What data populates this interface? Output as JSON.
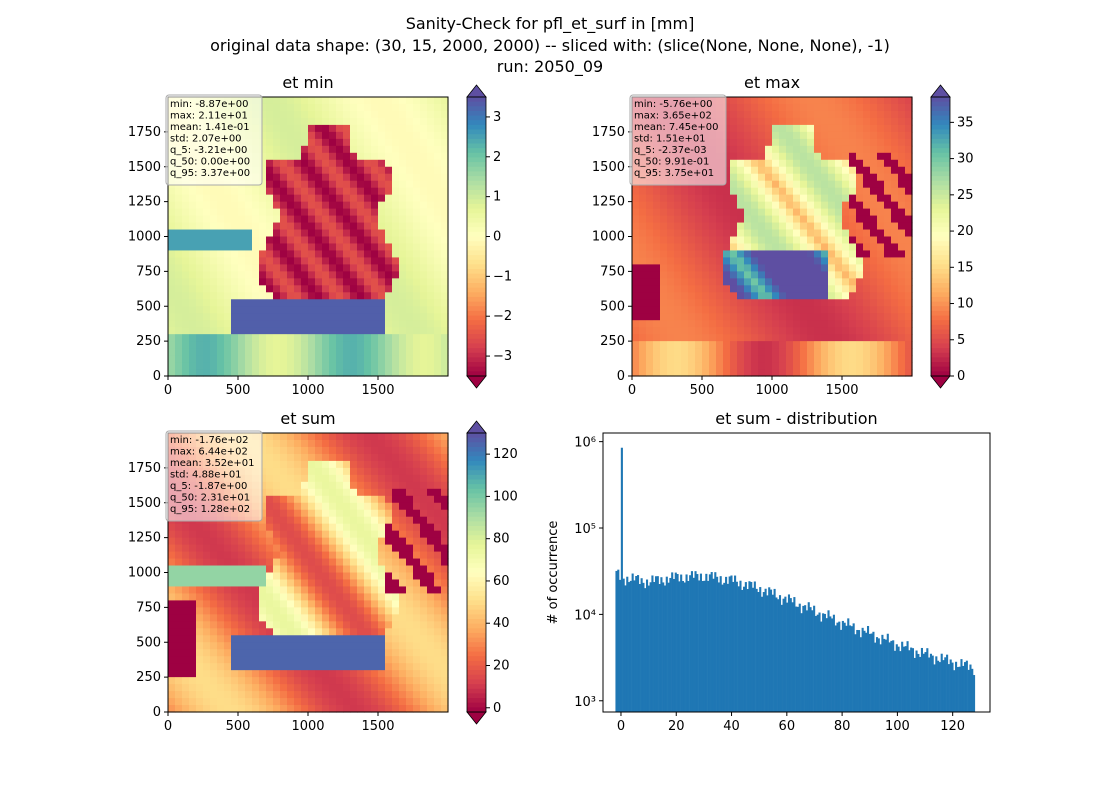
{
  "figure": {
    "suptitle_lines": [
      "Sanity-Check for pfl_et_surf in [mm]",
      "original data shape: (30, 15, 2000, 2000) -- sliced with: (slice(None, None, None), -1)",
      "run: 2050_09"
    ]
  },
  "chart_data": [
    {
      "type": "heatmap",
      "title": "et min",
      "xlabel": "",
      "ylabel": "",
      "xlim": [
        0,
        2000
      ],
      "ylim": [
        0,
        2000
      ],
      "xticks": [
        0,
        500,
        1000,
        1500
      ],
      "yticks": [
        0,
        250,
        500,
        750,
        1000,
        1250,
        1500,
        1750
      ],
      "colormap": "Spectral",
      "colorbar": {
        "range": [
          -3.5,
          3.5
        ],
        "ticks": [
          -3,
          -2,
          -1,
          0,
          1,
          2,
          3
        ],
        "extend": "both"
      },
      "stats": [
        "min: -8.87e+00",
        "max: 2.11e+01",
        "mean: 1.41e-01",
        "std: 2.07e+00",
        "q_5: -3.21e+00",
        "q_50: 0.00e+00",
        "q_95: 3.37e+00"
      ]
    },
    {
      "type": "heatmap",
      "title": "et max",
      "xlabel": "",
      "ylabel": "",
      "xlim": [
        0,
        2000
      ],
      "ylim": [
        0,
        2000
      ],
      "xticks": [
        0,
        500,
        1000,
        1500
      ],
      "yticks": [
        0,
        250,
        500,
        750,
        1000,
        1250,
        1500,
        1750
      ],
      "colormap": "Spectral",
      "colorbar": {
        "range": [
          0,
          38.5
        ],
        "ticks": [
          0,
          5,
          10,
          15,
          20,
          25,
          30,
          35
        ],
        "extend": "both"
      },
      "stats": [
        "min: -5.76e+00",
        "max: 3.65e+02",
        "mean: 7.45e+00",
        "std: 1.51e+01",
        "q_5: -2.37e-03",
        "q_50: 9.91e-01",
        "q_95: 3.75e+01"
      ]
    },
    {
      "type": "heatmap",
      "title": "et sum",
      "xlabel": "",
      "ylabel": "",
      "xlim": [
        0,
        2000
      ],
      "ylim": [
        0,
        2000
      ],
      "xticks": [
        0,
        500,
        1000,
        1500
      ],
      "yticks": [
        0,
        250,
        500,
        750,
        1000,
        1250,
        1500,
        1750
      ],
      "colormap": "Spectral",
      "colorbar": {
        "range": [
          -2,
          130
        ],
        "ticks": [
          0,
          20,
          40,
          60,
          80,
          100,
          120
        ],
        "extend": "both"
      },
      "stats": [
        "min: -1.76e+02",
        "max: 6.44e+02",
        "mean: 3.52e+01",
        "std: 4.88e+01",
        "q_5: -1.87e+00",
        "q_50: 2.31e+01",
        "q_95: 1.28e+02"
      ]
    },
    {
      "type": "bar",
      "title": "et sum - distribution",
      "xlabel": "",
      "ylabel": "# of occurrence",
      "xlim": [
        -6.5,
        133.5
      ],
      "ylim_log10": [
        2.87,
        6.1
      ],
      "yscale": "log",
      "xticks": [
        0,
        20,
        40,
        60,
        80,
        100,
        120
      ],
      "yticks": [
        "10³",
        "10⁴",
        "10⁵",
        "10⁶"
      ],
      "yticks_log10": [
        3,
        4,
        5,
        6
      ],
      "bar_color": "#1f77b4",
      "x_start": -2,
      "x_end": 128,
      "bins": 200,
      "spike": {
        "x": 0,
        "value": 850000
      },
      "values_envelope": {
        "x": [
          -2,
          0,
          10,
          20,
          30,
          40,
          50,
          60,
          70,
          80,
          90,
          100,
          110,
          120,
          128
        ],
        "y": [
          30000,
          27000,
          24000,
          27000,
          28000,
          25000,
          20000,
          15000,
          11000,
          8000,
          6000,
          4500,
          3500,
          2800,
          2400
        ]
      }
    }
  ]
}
